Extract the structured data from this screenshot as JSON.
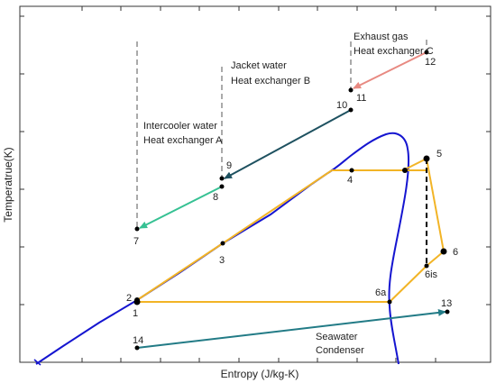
{
  "axes": {
    "xlabel": "Entropy (J/kg-K)",
    "ylabel": "Temperatrue(K)"
  },
  "colors": {
    "saturation_dome": "#1515d0",
    "cycle": "#f2b426",
    "exhaust_gas": "#e88a82",
    "jacket_water": "#1e5160",
    "intercooler_water": "#36c193",
    "seawater": "#227b86",
    "marker": "#000000"
  },
  "points": [
    {
      "id": "1",
      "label": "1"
    },
    {
      "id": "2",
      "label": "2"
    },
    {
      "id": "3",
      "label": "3"
    },
    {
      "id": "4",
      "label": "4"
    },
    {
      "id": "5",
      "label": "5"
    },
    {
      "id": "6",
      "label": "6"
    },
    {
      "id": "6a",
      "label": "6a"
    },
    {
      "id": "6is",
      "label": "6is"
    },
    {
      "id": "7",
      "label": "7"
    },
    {
      "id": "8",
      "label": "8"
    },
    {
      "id": "9",
      "label": "9"
    },
    {
      "id": "10",
      "label": "10"
    },
    {
      "id": "11",
      "label": "11"
    },
    {
      "id": "12",
      "label": "12"
    },
    {
      "id": "13",
      "label": "13"
    },
    {
      "id": "14",
      "label": "14"
    }
  ],
  "annotations": {
    "exhaust": {
      "line1": "Exhaust gas",
      "line2": "Heat exchanger C"
    },
    "jacket": {
      "line1": "Jacket water",
      "line2": "Heat exchanger B"
    },
    "intercooler": {
      "line1": "Intercooler water",
      "line2": "Heat exchanger A"
    },
    "seawater": {
      "line1": "Seawater",
      "line2": "Condenser"
    }
  }
}
